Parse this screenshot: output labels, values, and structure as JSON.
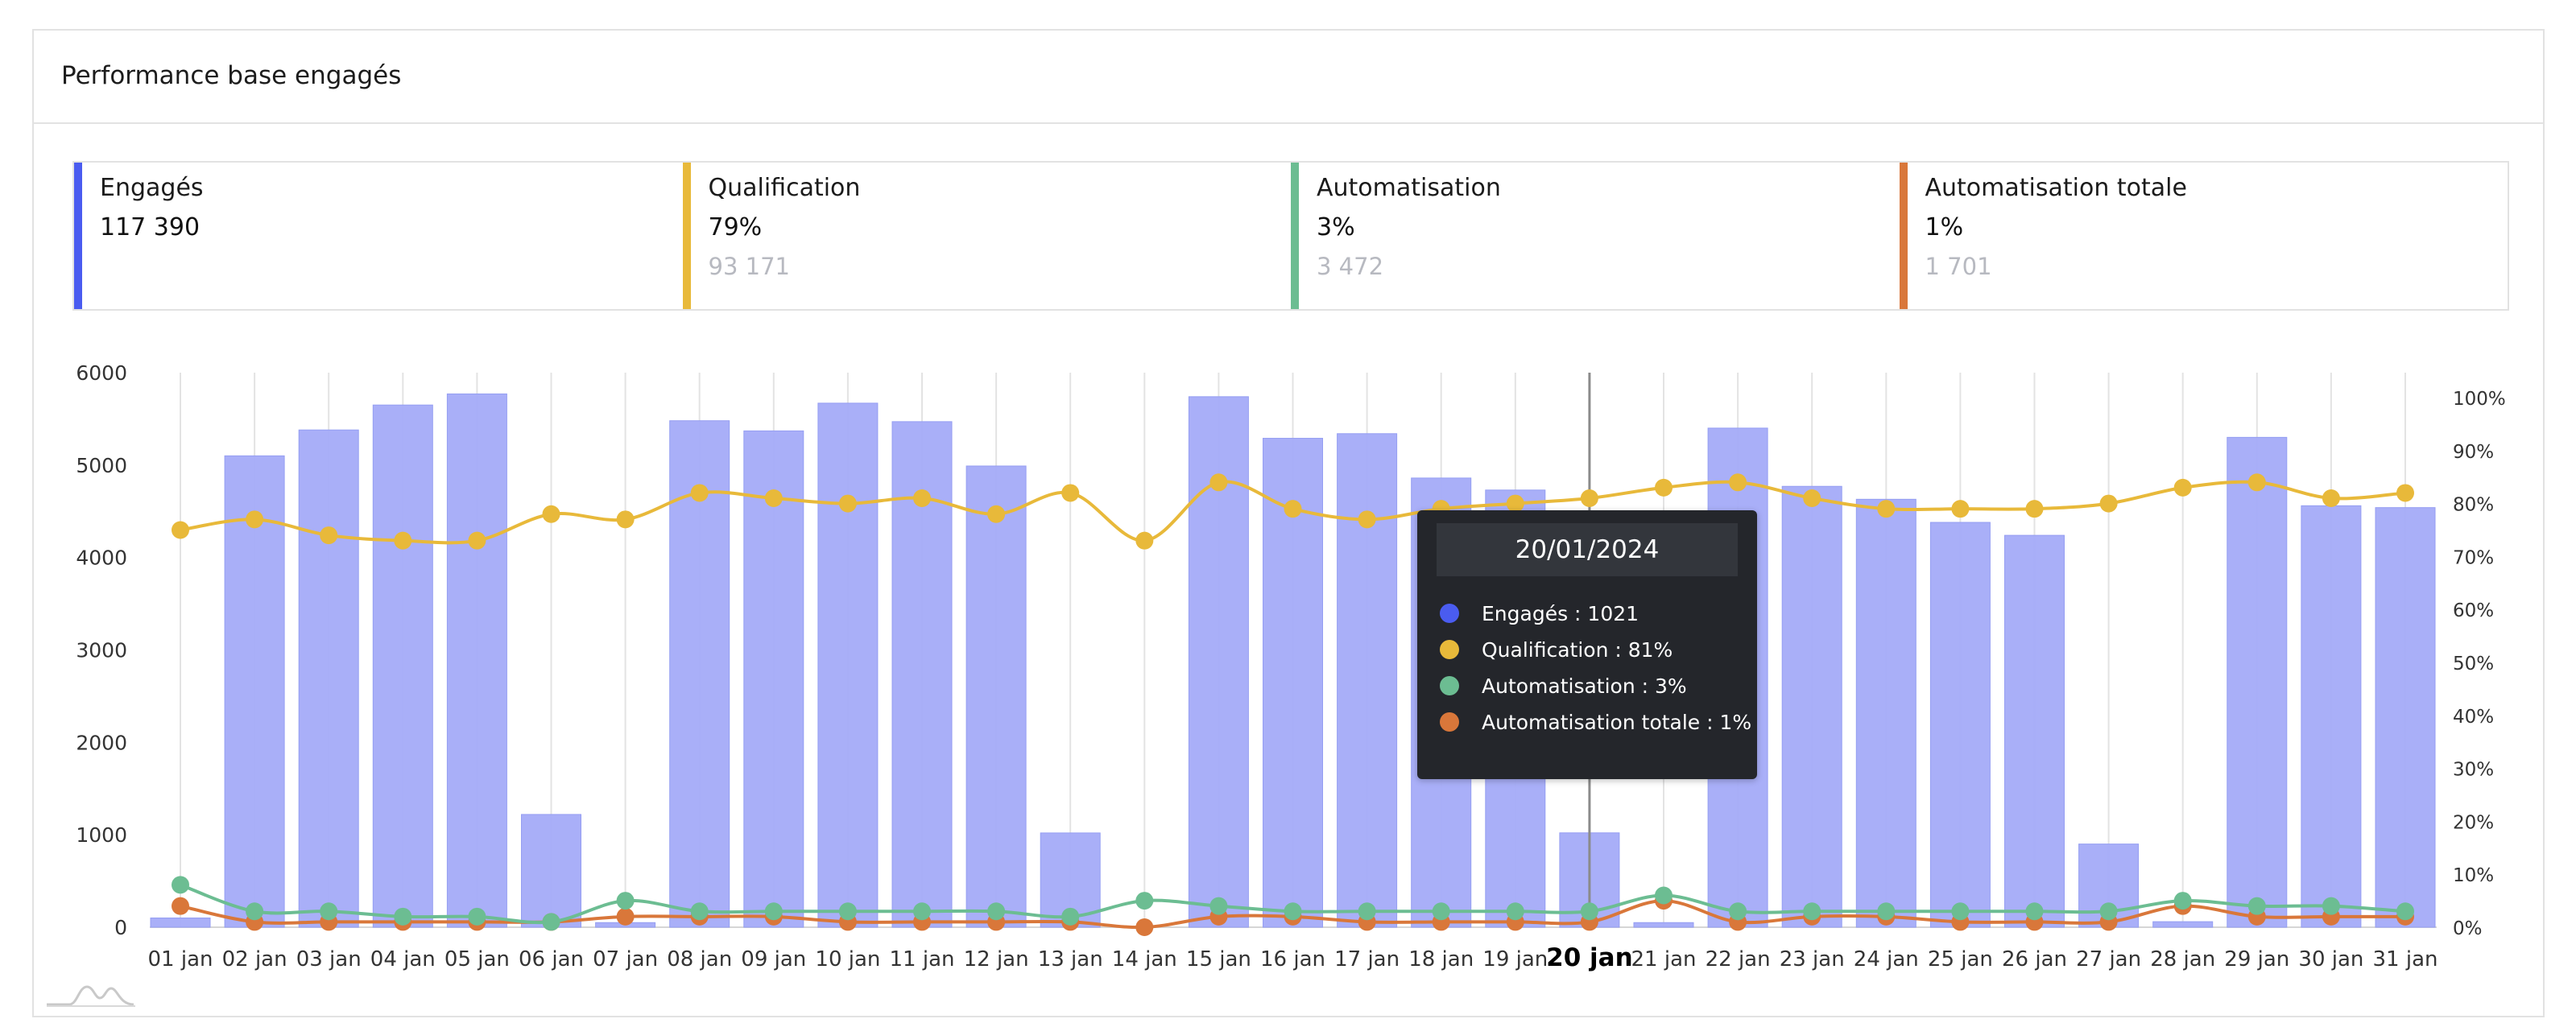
{
  "card": {
    "title": "Performance base engagés"
  },
  "kpis": [
    {
      "label": "Engagés",
      "value": "117 390",
      "sub": "",
      "color": "#4a5cf0"
    },
    {
      "label": "Qualification",
      "value": "79%",
      "sub": "93 171",
      "color": "#e8b93a"
    },
    {
      "label": "Automatisation",
      "value": "3%",
      "sub": "3 472",
      "color": "#6cbd92"
    },
    {
      "label": "Automatisation totale",
      "value": "1%",
      "sub": "1 701",
      "color": "#d9773a"
    }
  ],
  "tooltip": {
    "date": "20/01/2024",
    "rows": [
      {
        "text": "Engagés : 1021",
        "color": "#4a5cf0"
      },
      {
        "text": "Qualification : 81%",
        "color": "#e8b93a"
      },
      {
        "text": "Automatisation : 3%",
        "color": "#6cbd92"
      },
      {
        "text": "Automatisation totale : 1%",
        "color": "#d9773a"
      }
    ]
  },
  "chart_data": {
    "type": "bar",
    "categories": [
      "01 jan",
      "02 jan",
      "03 jan",
      "04 jan",
      "05 jan",
      "06 jan",
      "07 jan",
      "08 jan",
      "09 jan",
      "10 jan",
      "11 jan",
      "12 jan",
      "13 jan",
      "14 jan",
      "15 jan",
      "16 jan",
      "17 jan",
      "18 jan",
      "19 jan",
      "20 jan",
      "21 jan",
      "22 jan",
      "23 jan",
      "24 jan",
      "25 jan",
      "26 jan",
      "27 jan",
      "28 jan",
      "29 jan",
      "30 jan",
      "31 jan"
    ],
    "highlighted_category": "20 jan",
    "y_left": {
      "ylim": [
        0,
        6000
      ],
      "ticks": [
        "0",
        "1000",
        "2000",
        "3000",
        "4000",
        "5000",
        "6000"
      ]
    },
    "y_right": {
      "ylim": [
        0,
        100
      ],
      "ticks": [
        "0%",
        "10%",
        "20%",
        "30%",
        "40%",
        "50%",
        "60%",
        "70%",
        "80%",
        "90%",
        "100%"
      ]
    },
    "grid": "vertical",
    "series": [
      {
        "name": "Engagés",
        "type": "bar",
        "axis": "left",
        "color": "#a4abf8",
        "values": [
          100,
          5100,
          5380,
          5650,
          5770,
          1220,
          50,
          5480,
          5370,
          5670,
          5470,
          4990,
          1020,
          0,
          5740,
          5290,
          5340,
          4860,
          4730,
          1021,
          50,
          5400,
          4770,
          4630,
          4380,
          4240,
          900,
          60,
          5300,
          4560,
          4540
        ]
      },
      {
        "name": "Qualification",
        "type": "line",
        "axis": "right",
        "color": "#e8b93a",
        "values": [
          75,
          77,
          74,
          73,
          73,
          78,
          77,
          82,
          81,
          80,
          81,
          78,
          82,
          73,
          84,
          79,
          77,
          79,
          80,
          81,
          83,
          84,
          81,
          79,
          79,
          79,
          80,
          83,
          84,
          81,
          82
        ]
      },
      {
        "name": "Automatisation",
        "type": "line",
        "axis": "right",
        "color": "#6cbd92",
        "values": [
          8,
          3,
          3,
          2,
          2,
          1,
          5,
          3,
          3,
          3,
          3,
          3,
          2,
          5,
          4,
          3,
          3,
          3,
          3,
          3,
          6,
          3,
          3,
          3,
          3,
          3,
          3,
          5,
          4,
          4,
          3
        ]
      },
      {
        "name": "Automatisation totale",
        "type": "line",
        "axis": "right",
        "color": "#d9773a",
        "values": [
          4,
          1,
          1,
          1,
          1,
          1,
          2,
          2,
          2,
          1,
          1,
          1,
          1,
          0,
          2,
          2,
          1,
          1,
          1,
          1,
          5,
          1,
          2,
          2,
          1,
          1,
          1,
          4,
          2,
          2,
          2
        ]
      }
    ]
  }
}
